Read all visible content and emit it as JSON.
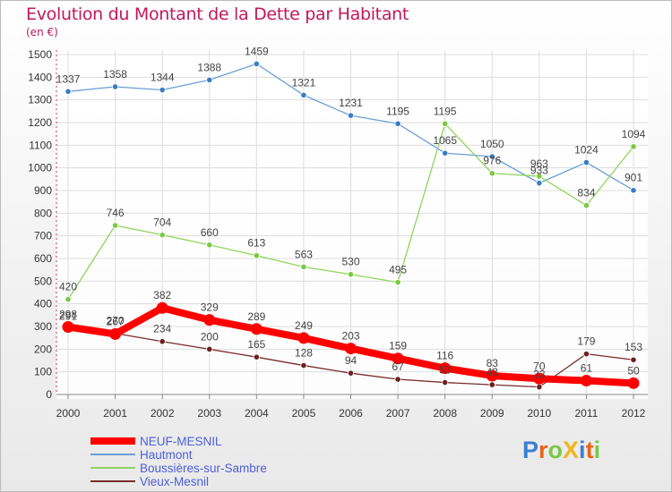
{
  "title": "Evolution du Montant de la Dette par Habitant",
  "unit_label": "(en €)",
  "logo_text": "ProXiti",
  "chart_data": {
    "type": "line",
    "title": "Evolution du Montant de la Dette par Habitant",
    "subtitle": "(en €)",
    "x": [
      "2000",
      "2001",
      "2002",
      "2003",
      "2004",
      "2005",
      "2006",
      "2007",
      "2008",
      "2009",
      "2010",
      "2011",
      "2012"
    ],
    "ylim": [
      0,
      1500
    ],
    "yticks": [
      0,
      100,
      200,
      300,
      400,
      500,
      600,
      700,
      800,
      900,
      1000,
      1100,
      1200,
      1300,
      1400,
      1500
    ],
    "grid": true,
    "legend_position": "bottom-left",
    "series": [
      {
        "name": "NEUF-MESNIL",
        "color": "#ff0000",
        "values": [
          298,
          267,
          382,
          329,
          289,
          249,
          203,
          159,
          116,
          83,
          70,
          61,
          50
        ]
      },
      {
        "name": "Hautmont",
        "color": "#6a9fd4",
        "marker_color": "#3b7cc4",
        "values": [
          1337,
          1358,
          1344,
          1388,
          1459,
          1321,
          1231,
          1195,
          1065,
          1050,
          933,
          1024,
          901
        ]
      },
      {
        "name": "Boussières-sur-Sambre",
        "color": "#8fd45c",
        "marker_color": "#7ac943",
        "values": [
          420,
          746,
          704,
          660,
          613,
          563,
          530,
          495,
          1195,
          976,
          963,
          834,
          1094
        ]
      },
      {
        "name": "Vieux-Mesnil",
        "color": "#7a2a2a",
        "marker_color": "#6b1f1f",
        "values": [
          291,
          270,
          234,
          200,
          165,
          128,
          94,
          67,
          53,
          43,
          33,
          179,
          153
        ]
      }
    ]
  }
}
